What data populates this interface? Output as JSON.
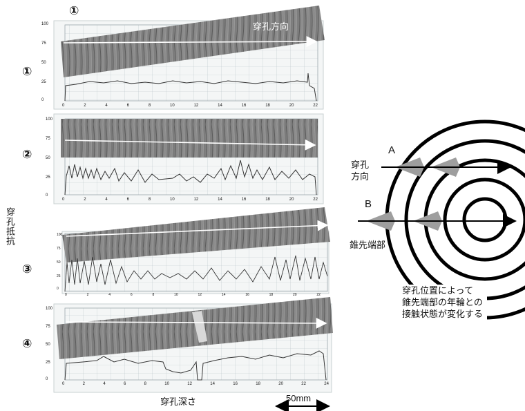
{
  "top_marker": "①",
  "direction_label": "穿孔方向",
  "y_axis_label": "穿孔抵抗",
  "x_axis_label": "穿孔深さ",
  "scale_label": "50mm",
  "panels": [
    {
      "marker": "①",
      "y_ticks": [
        "100",
        "75",
        "50",
        "25",
        "0"
      ],
      "x_ticks": [
        "0",
        "2",
        "4",
        "6",
        "8",
        "10",
        "12",
        "14",
        "16",
        "18",
        "20",
        "22"
      ]
    },
    {
      "marker": "②",
      "y_ticks": [
        "100",
        "75",
        "50",
        "25",
        "0"
      ],
      "x_ticks": [
        "0",
        "2",
        "4",
        "6",
        "8",
        "10",
        "12",
        "14",
        "16",
        "18",
        "20",
        "22"
      ]
    },
    {
      "marker": "③",
      "y_ticks": [
        "100",
        "75",
        "50",
        "25",
        "0"
      ],
      "x_ticks": [
        "0",
        "2",
        "4",
        "6",
        "8",
        "10",
        "12",
        "14",
        "16",
        "18",
        "20",
        "22"
      ]
    },
    {
      "marker": "④",
      "y_ticks": [
        "100",
        "75",
        "50",
        "25",
        "0"
      ],
      "x_ticks": [
        "0",
        "2",
        "4",
        "6",
        "8",
        "10",
        "12",
        "14",
        "16",
        "18",
        "20",
        "22",
        "24"
      ]
    }
  ],
  "ring_diagram": {
    "label_A": "A",
    "label_B": "B",
    "direction_label": [
      "穿孔",
      "方向"
    ],
    "tip_label": "錐先端部",
    "caption": [
      "穿孔位置によって",
      "錐先端部の年輪との",
      "接触状態が変化する"
    ]
  }
}
